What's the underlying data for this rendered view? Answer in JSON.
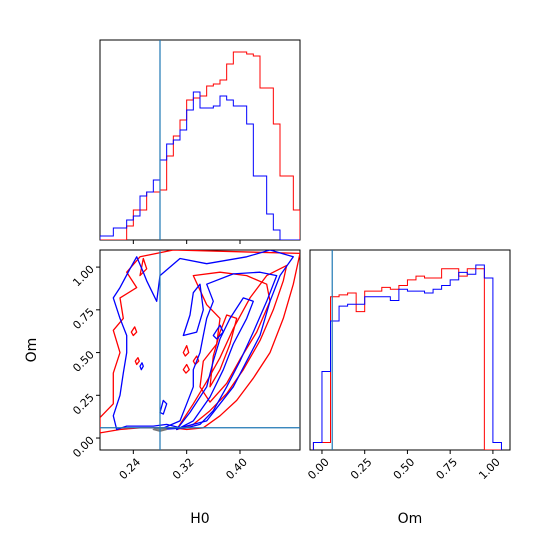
{
  "chart_data": {
    "type": "corner",
    "parameters": [
      "H0",
      "Om"
    ],
    "colors": {
      "red": "#ff0000",
      "blue": "#0000ff",
      "truth": "#1f77b4"
    },
    "truth": {
      "H0": 0.28,
      "Om": 0.06
    },
    "h0_hist": {
      "xlim": [
        0.19,
        0.49
      ],
      "bin_edges": [
        0.19,
        0.2,
        0.21,
        0.22,
        0.23,
        0.24,
        0.25,
        0.26,
        0.27,
        0.28,
        0.29,
        0.3,
        0.31,
        0.32,
        0.33,
        0.34,
        0.35,
        0.36,
        0.37,
        0.38,
        0.39,
        0.4,
        0.41,
        0.42,
        0.43,
        0.44,
        0.45,
        0.46,
        0.47,
        0.48,
        0.49
      ],
      "red": [
        0,
        0,
        0,
        0,
        0.07,
        0.15,
        0.15,
        0.24,
        0.24,
        0.25,
        0.42,
        0.52,
        0.6,
        0.7,
        0.71,
        0.72,
        0.77,
        0.78,
        0.8,
        0.88,
        0.94,
        0.94,
        0.93,
        0.92,
        0.76,
        0.76,
        0.58,
        0.32,
        0.32,
        0.15
      ],
      "blue": [
        0.02,
        0.02,
        0.06,
        0.06,
        0.1,
        0.12,
        0.22,
        0.24,
        0.3,
        0.4,
        0.48,
        0.5,
        0.55,
        0.65,
        0.74,
        0.66,
        0.66,
        0.67,
        0.72,
        0.7,
        0.67,
        0.67,
        0.58,
        0.32,
        0.32,
        0.13,
        0.05,
        0.0,
        0.0,
        0.0
      ]
    },
    "om_hist": {
      "xlim": [
        -0.07,
        1.1
      ],
      "bin_edges": [
        -0.05,
        0.0,
        0.05,
        0.1,
        0.15,
        0.2,
        0.25,
        0.3,
        0.35,
        0.4,
        0.45,
        0.5,
        0.55,
        0.6,
        0.65,
        0.7,
        0.75,
        0.8,
        0.85,
        0.9,
        0.95,
        1.0,
        1.05
      ],
      "red": [
        0.04,
        0.04,
        0.82,
        0.83,
        0.84,
        0.74,
        0.85,
        0.85,
        0.87,
        0.86,
        0.88,
        0.91,
        0.93,
        0.92,
        0.92,
        0.97,
        0.97,
        0.93,
        0.97,
        0.97,
        0.0,
        0.0
      ],
      "blue": [
        0.04,
        0.42,
        0.69,
        0.77,
        0.78,
        0.78,
        0.82,
        0.82,
        0.82,
        0.8,
        0.86,
        0.85,
        0.85,
        0.84,
        0.86,
        0.88,
        0.91,
        0.95,
        0.94,
        0.99,
        0.92,
        0.04
      ]
    },
    "scatter_panel": {
      "xlabel": "H0",
      "ylabel": "Om",
      "xlim": [
        0.19,
        0.49
      ],
      "ylim": [
        -0.07,
        1.1
      ],
      "red_contours": [
        [
          [
            0.19,
            0.03
          ],
          [
            0.22,
            0.05
          ],
          [
            0.25,
            0.06
          ],
          [
            0.28,
            0.06
          ],
          [
            0.3,
            0.06
          ],
          [
            0.32,
            0.05
          ],
          [
            0.345,
            0.06
          ],
          [
            0.37,
            0.13
          ],
          [
            0.395,
            0.22
          ],
          [
            0.42,
            0.35
          ],
          [
            0.445,
            0.5
          ],
          [
            0.465,
            0.7
          ],
          [
            0.48,
            0.9
          ],
          [
            0.49,
            1.08
          ],
          [
            0.3,
            1.1
          ],
          [
            0.25,
            1.06
          ],
          [
            0.23,
            0.97
          ],
          [
            0.245,
            0.88
          ],
          [
            0.22,
            0.82
          ],
          [
            0.225,
            0.7
          ],
          [
            0.21,
            0.63
          ],
          [
            0.22,
            0.5
          ],
          [
            0.21,
            0.38
          ],
          [
            0.21,
            0.2
          ],
          [
            0.19,
            0.12
          ],
          [
            0.19,
            0.03
          ]
        ],
        [
          [
            0.305,
            0.05
          ],
          [
            0.33,
            0.08
          ],
          [
            0.355,
            0.16
          ],
          [
            0.38,
            0.26
          ],
          [
            0.405,
            0.4
          ],
          [
            0.43,
            0.57
          ],
          [
            0.45,
            0.75
          ],
          [
            0.465,
            0.92
          ],
          [
            0.47,
            1.01
          ],
          [
            0.44,
            0.95
          ],
          [
            0.415,
            0.82
          ],
          [
            0.39,
            0.64
          ],
          [
            0.37,
            0.47
          ],
          [
            0.35,
            0.33
          ],
          [
            0.33,
            0.2
          ],
          [
            0.305,
            0.05
          ]
        ],
        [
          [
            0.33,
            0.95
          ],
          [
            0.37,
            0.97
          ],
          [
            0.41,
            0.95
          ],
          [
            0.44,
            0.9
          ],
          [
            0.445,
            0.8
          ],
          [
            0.425,
            0.62
          ],
          [
            0.4,
            0.46
          ],
          [
            0.38,
            0.32
          ],
          [
            0.355,
            0.21
          ],
          [
            0.34,
            0.3
          ],
          [
            0.345,
            0.45
          ],
          [
            0.365,
            0.55
          ],
          [
            0.37,
            0.7
          ],
          [
            0.35,
            0.78
          ],
          [
            0.33,
            0.95
          ]
        ],
        [
          [
            0.355,
            0.3
          ],
          [
            0.37,
            0.4
          ],
          [
            0.385,
            0.55
          ],
          [
            0.395,
            0.7
          ],
          [
            0.38,
            0.72
          ],
          [
            0.37,
            0.62
          ],
          [
            0.36,
            0.48
          ],
          [
            0.355,
            0.3
          ]
        ],
        [
          [
            0.25,
            0.95
          ],
          [
            0.255,
            1.05
          ],
          [
            0.26,
            0.99
          ],
          [
            0.25,
            0.95
          ]
        ],
        [
          [
            0.237,
            0.62
          ],
          [
            0.242,
            0.65
          ],
          [
            0.245,
            0.62
          ],
          [
            0.24,
            0.6
          ],
          [
            0.237,
            0.62
          ]
        ],
        [
          [
            0.243,
            0.45
          ],
          [
            0.247,
            0.47
          ],
          [
            0.249,
            0.45
          ],
          [
            0.245,
            0.43
          ],
          [
            0.243,
            0.45
          ]
        ],
        [
          [
            0.315,
            0.5
          ],
          [
            0.32,
            0.54
          ],
          [
            0.323,
            0.5
          ],
          [
            0.318,
            0.48
          ],
          [
            0.315,
            0.5
          ]
        ],
        [
          [
            0.33,
            0.45
          ],
          [
            0.335,
            0.48
          ],
          [
            0.338,
            0.45
          ],
          [
            0.333,
            0.43
          ],
          [
            0.33,
            0.45
          ]
        ],
        [
          [
            0.315,
            0.4
          ],
          [
            0.32,
            0.43
          ],
          [
            0.324,
            0.4
          ],
          [
            0.319,
            0.38
          ],
          [
            0.315,
            0.4
          ]
        ]
      ],
      "blue_contours": [
        [
          [
            0.215,
            0.05
          ],
          [
            0.23,
            0.07
          ],
          [
            0.27,
            0.07
          ],
          [
            0.29,
            0.08
          ],
          [
            0.31,
            0.06
          ],
          [
            0.35,
            0.1
          ],
          [
            0.37,
            0.2
          ],
          [
            0.39,
            0.3
          ],
          [
            0.41,
            0.45
          ],
          [
            0.43,
            0.6
          ],
          [
            0.445,
            0.8
          ],
          [
            0.46,
            0.95
          ],
          [
            0.48,
            1.06
          ],
          [
            0.445,
            1.1
          ],
          [
            0.41,
            1.06
          ],
          [
            0.35,
            1.02
          ],
          [
            0.31,
            1.05
          ],
          [
            0.28,
            0.95
          ],
          [
            0.275,
            0.8
          ],
          [
            0.26,
            0.92
          ],
          [
            0.255,
            0.97
          ],
          [
            0.245,
            1.06
          ],
          [
            0.235,
            0.99
          ],
          [
            0.22,
            0.88
          ],
          [
            0.21,
            0.82
          ],
          [
            0.22,
            0.7
          ],
          [
            0.23,
            0.6
          ],
          [
            0.23,
            0.5
          ],
          [
            0.225,
            0.38
          ],
          [
            0.22,
            0.25
          ],
          [
            0.21,
            0.13
          ],
          [
            0.215,
            0.05
          ]
        ],
        [
          [
            0.28,
            0.05
          ],
          [
            0.32,
            0.06
          ],
          [
            0.34,
            0.08
          ],
          [
            0.36,
            0.16
          ],
          [
            0.38,
            0.3
          ],
          [
            0.4,
            0.45
          ],
          [
            0.42,
            0.62
          ],
          [
            0.44,
            0.8
          ],
          [
            0.455,
            0.95
          ],
          [
            0.43,
            0.97
          ],
          [
            0.39,
            0.96
          ],
          [
            0.35,
            0.9
          ],
          [
            0.36,
            0.8
          ],
          [
            0.35,
            0.7
          ],
          [
            0.345,
            0.6
          ],
          [
            0.34,
            0.5
          ],
          [
            0.33,
            0.4
          ],
          [
            0.33,
            0.3
          ],
          [
            0.32,
            0.2
          ],
          [
            0.31,
            0.1
          ],
          [
            0.28,
            0.05
          ]
        ],
        [
          [
            0.305,
            0.05
          ],
          [
            0.33,
            0.1
          ],
          [
            0.355,
            0.24
          ],
          [
            0.375,
            0.4
          ],
          [
            0.39,
            0.55
          ],
          [
            0.41,
            0.7
          ],
          [
            0.42,
            0.8
          ],
          [
            0.405,
            0.82
          ],
          [
            0.385,
            0.7
          ],
          [
            0.37,
            0.58
          ],
          [
            0.36,
            0.45
          ],
          [
            0.35,
            0.3
          ],
          [
            0.325,
            0.15
          ],
          [
            0.305,
            0.05
          ]
        ],
        [
          [
            0.315,
            0.6
          ],
          [
            0.325,
            0.72
          ],
          [
            0.33,
            0.85
          ],
          [
            0.34,
            0.9
          ],
          [
            0.345,
            0.75
          ],
          [
            0.335,
            0.62
          ],
          [
            0.315,
            0.6
          ]
        ],
        [
          [
            0.36,
            0.6
          ],
          [
            0.37,
            0.66
          ],
          [
            0.375,
            0.62
          ],
          [
            0.365,
            0.58
          ],
          [
            0.36,
            0.6
          ]
        ],
        [
          [
            0.28,
            0.15
          ],
          [
            0.285,
            0.22
          ],
          [
            0.29,
            0.2
          ],
          [
            0.285,
            0.14
          ],
          [
            0.28,
            0.15
          ]
        ],
        [
          [
            0.25,
            0.42
          ],
          [
            0.253,
            0.44
          ],
          [
            0.255,
            0.42
          ],
          [
            0.252,
            0.4
          ],
          [
            0.25,
            0.42
          ]
        ]
      ],
      "grey_blob": [
        [
          0.27,
          0.05
        ],
        [
          0.28,
          0.06
        ],
        [
          0.29,
          0.05
        ],
        [
          0.28,
          0.04
        ],
        [
          0.27,
          0.05
        ]
      ]
    },
    "h0_ticks": [
      "0.24",
      "0.32",
      "0.40"
    ],
    "om_ticks": [
      "0.00",
      "0.25",
      "0.50",
      "0.75",
      "1.00"
    ],
    "om_tick_values": [
      0.0,
      0.25,
      0.5,
      0.75,
      1.0
    ],
    "h0_tick_values": [
      0.24,
      0.32,
      0.4
    ]
  }
}
